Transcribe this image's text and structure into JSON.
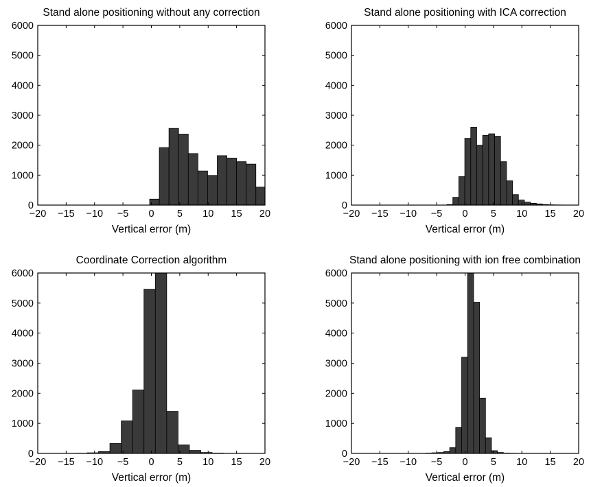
{
  "chart_data": [
    {
      "type": "bar",
      "title": "Stand alone positioning without any correction",
      "xlabel": "Vertical error (m)",
      "ylabel": "",
      "xlim": [
        -20,
        20
      ],
      "ylim": [
        0,
        6000
      ],
      "xticks": [
        "−20",
        "−15",
        "−10",
        "−5",
        "0",
        "5",
        "10",
        "15",
        "20"
      ],
      "yticks": [
        "0",
        "1000",
        "2000",
        "3000",
        "4000",
        "5000",
        "6000"
      ],
      "bin_width": 1.7,
      "bin_start": -0.3,
      "values": [
        200,
        1920,
        2560,
        2370,
        1720,
        1140,
        990,
        1650,
        1570,
        1450,
        1370,
        600
      ],
      "color": "#3a3a3a"
    },
    {
      "type": "bar",
      "title": "Stand alone positioning with ICA correction",
      "xlabel": "Vertical error (m)",
      "ylabel": "",
      "xlim": [
        -20,
        20
      ],
      "ylim": [
        0,
        6000
      ],
      "xticks": [
        "−20",
        "−15",
        "−10",
        "−5",
        "0",
        "5",
        "10",
        "15",
        "20"
      ],
      "yticks": [
        "0",
        "1000",
        "2000",
        "3000",
        "4000",
        "5000",
        "6000"
      ],
      "bin_width": 1.05,
      "bin_start": -3.2,
      "values": [
        20,
        260,
        950,
        2230,
        2600,
        2000,
        2330,
        2380,
        2300,
        1450,
        810,
        350,
        170,
        100,
        60,
        40,
        20,
        10,
        5,
        3,
        2
      ],
      "color": "#3a3a3a"
    },
    {
      "type": "bar",
      "title": "Coordinate Correction algorithm",
      "xlabel": "Vertical error (m)",
      "ylabel": "",
      "xlim": [
        -20,
        20
      ],
      "ylim": [
        0,
        6000
      ],
      "xticks": [
        "−20",
        "−15",
        "−10",
        "−5",
        "0",
        "5",
        "10",
        "15",
        "20"
      ],
      "yticks": [
        "0",
        "1000",
        "2000",
        "3000",
        "4000",
        "5000",
        "6000"
      ],
      "bin_width": 2.0,
      "bin_start": -13.3,
      "values": [
        5,
        20,
        60,
        330,
        1080,
        2110,
        5460,
        6000,
        1400,
        280,
        100,
        30,
        10
      ],
      "color": "#3a3a3a"
    },
    {
      "type": "bar",
      "title": "Stand alone positioning with ion free combination",
      "xlabel": "Vertical error (m)",
      "ylabel": "",
      "xlim": [
        -20,
        20
      ],
      "ylim": [
        0,
        6000
      ],
      "xticks": [
        "−20",
        "−15",
        "−10",
        "−5",
        "0",
        "5",
        "10",
        "15",
        "20"
      ],
      "yticks": [
        "0",
        "1000",
        "2000",
        "3000",
        "4000",
        "5000",
        "6000"
      ],
      "bin_width": 1.05,
      "bin_start": -6.9,
      "values": [
        10,
        20,
        30,
        60,
        190,
        860,
        3200,
        6000,
        5030,
        1840,
        520,
        90,
        30,
        10,
        5
      ],
      "color": "#3a3a3a"
    }
  ]
}
